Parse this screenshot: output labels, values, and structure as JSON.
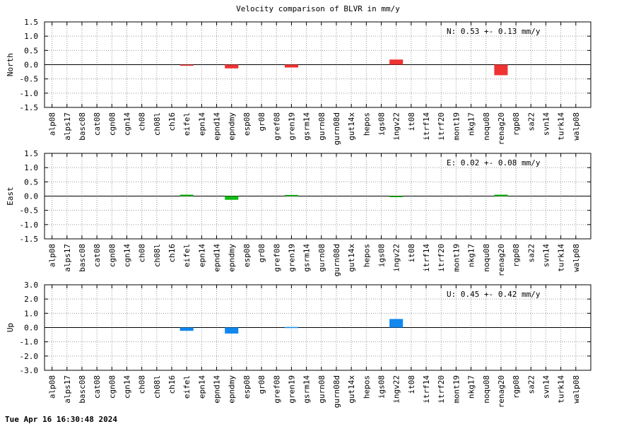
{
  "title": "Velocity comparison of BLVR in mm/y",
  "timestamp": "Tue Apr 16 16:30:48 2024",
  "chart_data": [
    {
      "type": "bar",
      "ylabel": "North",
      "ylim": [
        -1.5,
        1.5
      ],
      "yticks": [
        "1.5",
        "1.0",
        "0.5",
        "0.0",
        "-0.5",
        "-1.0",
        "-1.5"
      ],
      "annotation": "N:   0.53 +-  0.13 mm/y",
      "color": "#ee3333",
      "grid": true,
      "categories": [
        "alp08",
        "alps17",
        "basc08",
        "cat08",
        "cgn08",
        "cgn14",
        "ch08",
        "ch08l",
        "ch16",
        "eifel",
        "epn14",
        "epnd14",
        "epndmy",
        "esp08",
        "gr08",
        "gref08",
        "gren19",
        "gsrm14",
        "gurn08",
        "gurn08d",
        "gut14x",
        "hepos",
        "igs08",
        "ingv22",
        "it08",
        "itrf14",
        "itrf20",
        "mont19",
        "nkg17",
        "noqu08",
        "renag20",
        "rgp08",
        "sa22",
        "svn14",
        "turk14",
        "walp08"
      ],
      "values": [
        0,
        0,
        0,
        0,
        0,
        0,
        0,
        0,
        0,
        -0.03,
        0,
        0,
        -0.13,
        0,
        0,
        0,
        -0.1,
        0,
        0,
        0,
        0,
        0,
        0,
        0.18,
        0,
        0,
        0,
        0,
        0,
        0,
        -0.37,
        0,
        0,
        0,
        0,
        0
      ]
    },
    {
      "type": "bar",
      "ylabel": "East",
      "ylim": [
        -1.5,
        1.5
      ],
      "yticks": [
        "1.5",
        "1.0",
        "0.5",
        "0.0",
        "-0.5",
        "-1.0",
        "-1.5"
      ],
      "annotation": "E:   0.02 +-  0.08 mm/y",
      "color": "#11bb11",
      "grid": true,
      "categories": [
        "alp08",
        "alps17",
        "basc08",
        "cat08",
        "cgn08",
        "cgn14",
        "ch08",
        "ch08l",
        "ch16",
        "eifel",
        "epn14",
        "epnd14",
        "epndmy",
        "esp08",
        "gr08",
        "gref08",
        "gren19",
        "gsrm14",
        "gurn08",
        "gurn08d",
        "gut14x",
        "hepos",
        "igs08",
        "ingv22",
        "it08",
        "itrf14",
        "itrf20",
        "mont19",
        "nkg17",
        "noqu08",
        "renag20",
        "rgp08",
        "sa22",
        "svn14",
        "turk14",
        "walp08"
      ],
      "values": [
        0,
        0,
        0,
        0,
        0,
        0,
        0,
        0,
        0,
        0.05,
        0,
        0,
        -0.13,
        0,
        0,
        0,
        0.04,
        0,
        0,
        0,
        0,
        0,
        0,
        -0.03,
        0,
        0,
        0,
        0,
        0,
        0,
        0.05,
        0,
        0,
        0,
        0,
        0
      ]
    },
    {
      "type": "bar",
      "ylabel": "Up",
      "ylim": [
        -3.0,
        3.0
      ],
      "yticks": [
        "3.0",
        "2.0",
        "1.0",
        "0.0",
        "-1.0",
        "-2.0",
        "-3.0"
      ],
      "annotation": "U:   0.45 +-  0.42 mm/y",
      "color": "#1188ee",
      "grid": true,
      "categories": [
        "alp08",
        "alps17",
        "basc08",
        "cat08",
        "cgn08",
        "cgn14",
        "ch08",
        "ch08l",
        "ch16",
        "eifel",
        "epn14",
        "epnd14",
        "epndmy",
        "esp08",
        "gr08",
        "gref08",
        "gren19",
        "gsrm14",
        "gurn08",
        "gurn08d",
        "gut14x",
        "hepos",
        "igs08",
        "ingv22",
        "it08",
        "itrf14",
        "itrf20",
        "mont19",
        "nkg17",
        "noqu08",
        "renag20",
        "rgp08",
        "sa22",
        "svn14",
        "turk14",
        "walp08"
      ],
      "values": [
        0,
        0,
        0,
        0,
        0,
        0,
        0,
        0,
        0,
        -0.23,
        0,
        0,
        -0.42,
        0,
        0,
        0,
        0.04,
        0,
        0,
        0,
        0,
        0,
        0,
        0.6,
        0,
        0,
        0,
        0,
        0,
        0,
        0,
        0,
        0,
        0,
        0,
        0
      ]
    }
  ]
}
